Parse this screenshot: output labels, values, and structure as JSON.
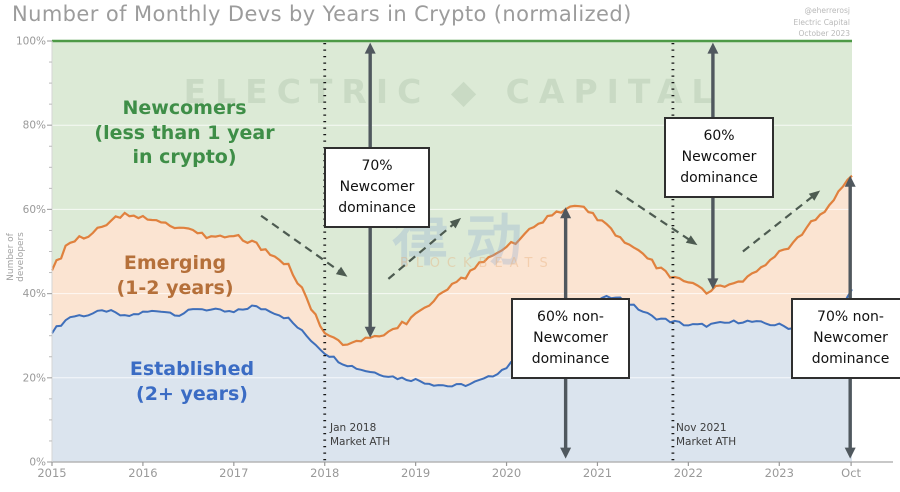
{
  "title": "Number of Monthly Devs by Years in Crypto (normalized)",
  "attribution": {
    "handle": "@eherrerosj",
    "org": "Electric Capital",
    "date": "October 2023"
  },
  "watermark": {
    "main": "ELECTRIC ◆ CAPITAL",
    "cn": "律动",
    "sub": "BLOCKBEATS"
  },
  "annotations": {
    "box_70_newcomer": "70%\nNewcomer\ndominance",
    "box_60_newcomer": "60%\nNewcomer\ndominance",
    "box_60_non_newcomer": "60% non-\nNewcomer\ndominance",
    "box_70_non_newcomer": "70% non-\nNewcomer\ndominance"
  },
  "area_labels": {
    "newcomers": "Newcomers\n(less than 1 year\nin crypto)",
    "emerging": "Emerging\n(1-2 years)",
    "established": "Established\n(2+ years)"
  },
  "chart_data": {
    "type": "area",
    "stacked": true,
    "normalized": true,
    "title": "Number of Monthly Devs by Years in Crypto (normalized)",
    "xlabel": "",
    "ylabel": "Number of developers",
    "ylim": [
      0,
      100
    ],
    "xlim": [
      2015,
      2023.79
    ],
    "yticks": [
      "0%",
      "20%",
      "40%",
      "60%",
      "80%",
      "100%"
    ],
    "xticks": [
      "2015",
      "2016",
      "2017",
      "2018",
      "2019",
      "2020",
      "2021",
      "2022",
      "2023",
      "Oct"
    ],
    "grid": "horizontal-major",
    "legend_position": "labels-inside-areas",
    "x": [
      2015.0,
      2015.2,
      2015.4,
      2015.6,
      2015.8,
      2016.0,
      2016.2,
      2016.4,
      2016.6,
      2016.8,
      2017.0,
      2017.2,
      2017.4,
      2017.6,
      2017.8,
      2018.0,
      2018.2,
      2018.4,
      2018.6,
      2018.8,
      2019.0,
      2019.2,
      2019.4,
      2019.6,
      2019.8,
      2020.0,
      2020.2,
      2020.4,
      2020.6,
      2020.8,
      2021.0,
      2021.2,
      2021.4,
      2021.6,
      2021.8,
      2022.0,
      2022.2,
      2022.4,
      2022.6,
      2022.8,
      2023.0,
      2023.2,
      2023.4,
      2023.6,
      2023.8
    ],
    "series": [
      {
        "name": "Established (2+ years)",
        "unit": "% of developers",
        "line_color": "#3f6fba",
        "fill_color": "#dbe4ee",
        "values": [
          31,
          34.5,
          35,
          36,
          34.5,
          35.5,
          36,
          35,
          36.5,
          36,
          35.5,
          37,
          36,
          34,
          30,
          26,
          23.5,
          22,
          21,
          20,
          19.5,
          18.5,
          18,
          18.5,
          20,
          22.5,
          26,
          29,
          32,
          35,
          38.5,
          39.5,
          37,
          34.5,
          33.5,
          32.5,
          32.5,
          33,
          33.5,
          33,
          32.5,
          31.5,
          31.5,
          33.5,
          41
        ]
      },
      {
        "name": "Emerging (1-2 years)",
        "unit": "% of developers",
        "line_color": "#e0813e",
        "fill_color": "#fbe4d2",
        "values": [
          15,
          18,
          19,
          20.5,
          24.5,
          22.5,
          21,
          21,
          18,
          17,
          18,
          15,
          14,
          12.5,
          9,
          4.5,
          5,
          7,
          9,
          12,
          15.5,
          20,
          24,
          26.5,
          28.5,
          28.5,
          28,
          28,
          28,
          25.5,
          19.5,
          15,
          14,
          13,
          11,
          10,
          8,
          8.5,
          10,
          13,
          17,
          22,
          26,
          28.5,
          27
        ]
      },
      {
        "name": "Newcomers (less than 1 year in crypto)",
        "unit": "% of developers",
        "line_color": "#4e9a47",
        "fill_color": "#dcead6",
        "values": [
          54,
          47.5,
          46,
          43.5,
          41,
          42,
          43,
          44,
          45.5,
          47,
          46.5,
          48,
          50,
          53.5,
          61,
          69.5,
          71.5,
          71,
          70,
          68,
          65,
          61.5,
          58,
          55,
          51.5,
          49,
          46,
          43,
          40,
          39.5,
          42,
          45.5,
          49,
          52.5,
          55.5,
          57.5,
          59.5,
          58.5,
          56.5,
          54,
          50.5,
          46.5,
          42.5,
          38,
          32
        ]
      }
    ],
    "events": [
      {
        "label": "Jan 2018\nMarket ATH",
        "x": 2018.0
      },
      {
        "label": "Nov 2021\nMarket ATH",
        "x": 2021.83
      }
    ]
  }
}
